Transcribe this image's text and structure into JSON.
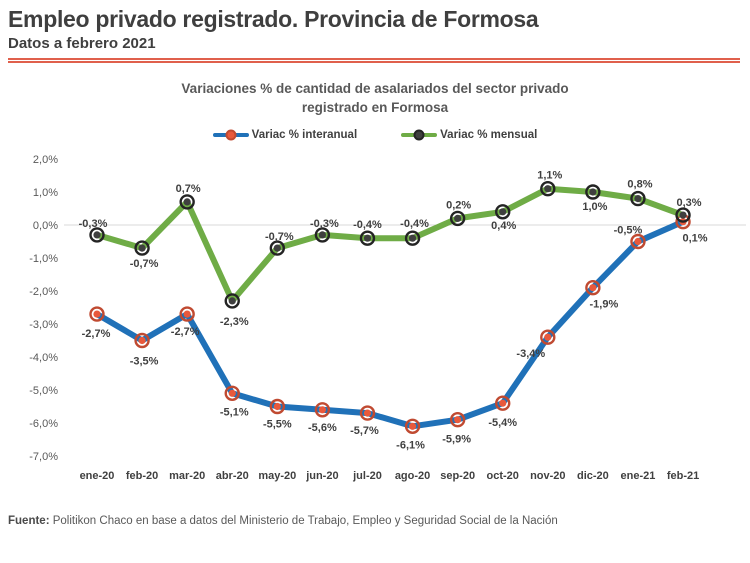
{
  "header": {
    "title": "Empleo privado registrado. Provincia de Formosa",
    "subtitle": "Datos a febrero 2021",
    "accent_color": "#e0604c"
  },
  "chart": {
    "title_line1": "Variaciones % de cantidad de asalariados del sector privado",
    "title_line2": "registrado en Formosa"
  },
  "chart_data": {
    "type": "line",
    "title": "Variaciones % de cantidad de asalariados del sector privado registrado en Formosa",
    "categories": [
      "ene-20",
      "feb-20",
      "mar-20",
      "abr-20",
      "may-20",
      "jun-20",
      "jul-20",
      "ago-20",
      "sep-20",
      "oct-20",
      "nov-20",
      "dic-20",
      "ene-21",
      "feb-21"
    ],
    "series": [
      {
        "name": "Variac % interanual",
        "color": "#2071b8",
        "marker_fill": "#e8593c",
        "marker_ring": "#c04a31",
        "values": [
          -2.7,
          -3.5,
          -2.7,
          -5.1,
          -5.5,
          -5.6,
          -5.7,
          -6.1,
          -5.9,
          -5.4,
          -3.4,
          -1.9,
          -0.5,
          0.1
        ],
        "labels": [
          "-2,7%",
          "-3,5%",
          "-2,7%",
          "-5,1%",
          "-5,5%",
          "-5,6%",
          "-5,7%",
          "-6,1%",
          "-5,9%",
          "-5,4%",
          "-3,4%",
          "-1,9%",
          "-0,5%",
          "0,1%"
        ],
        "label_offsets": [
          [
            -1,
            23
          ],
          [
            2,
            24
          ],
          [
            -2,
            21
          ],
          [
            2,
            22
          ],
          [
            0,
            21
          ],
          [
            0,
            21
          ],
          [
            -3,
            21
          ],
          [
            -2,
            22
          ],
          [
            -1,
            23
          ],
          [
            0,
            23
          ],
          [
            -17,
            20
          ],
          [
            11,
            20
          ],
          [
            -10,
            -8
          ],
          [
            12,
            20
          ]
        ]
      },
      {
        "name": "Variac % mensual",
        "color": "#6fac46",
        "marker_fill": "#3f3f3f",
        "marker_ring": "#242424",
        "values": [
          -0.3,
          -0.7,
          0.7,
          -2.3,
          -0.7,
          -0.3,
          -0.4,
          -0.4,
          0.2,
          0.4,
          1.1,
          1.0,
          0.8,
          0.3
        ],
        "labels": [
          "-0,3%",
          "-0,7%",
          "0,7%",
          "-2,3%",
          "-0,7%",
          "-0,3%",
          "-0,4%",
          "-0,4%",
          "0,2%",
          "0,4%",
          "1,1%",
          "1,0%",
          "0,8%",
          "0,3%"
        ],
        "label_offsets": [
          [
            -4,
            -8
          ],
          [
            2,
            19
          ],
          [
            1,
            -10
          ],
          [
            2,
            24
          ],
          [
            2,
            -8
          ],
          [
            2,
            -8
          ],
          [
            0,
            -10
          ],
          [
            2,
            -11
          ],
          [
            1,
            -10
          ],
          [
            1,
            17
          ],
          [
            2,
            -10
          ],
          [
            2,
            18
          ],
          [
            2,
            -11
          ],
          [
            6,
            -9
          ]
        ]
      }
    ],
    "ylim": [
      -7,
      2
    ],
    "yticks": [
      [
        "2,0%",
        2
      ],
      [
        "1,0%",
        1
      ],
      [
        "0,0%",
        0
      ],
      [
        "-1,0%",
        -1
      ],
      [
        "-2,0%",
        -2
      ],
      [
        "-3,0%",
        -3
      ],
      [
        "-4,0%",
        -4
      ],
      [
        "-5,0%",
        -5
      ],
      [
        "-6,0%",
        -6
      ],
      [
        "-7,0%",
        -7
      ]
    ],
    "grid": "zero-line-only",
    "grid_color": "#d9d9d9",
    "legend_position": "top"
  },
  "footer": {
    "source_label": "Fuente:",
    "source_text": " Politikon Chaco en base a datos del Ministerio de Trabajo, Empleo y Seguridad Social de la Nación"
  }
}
